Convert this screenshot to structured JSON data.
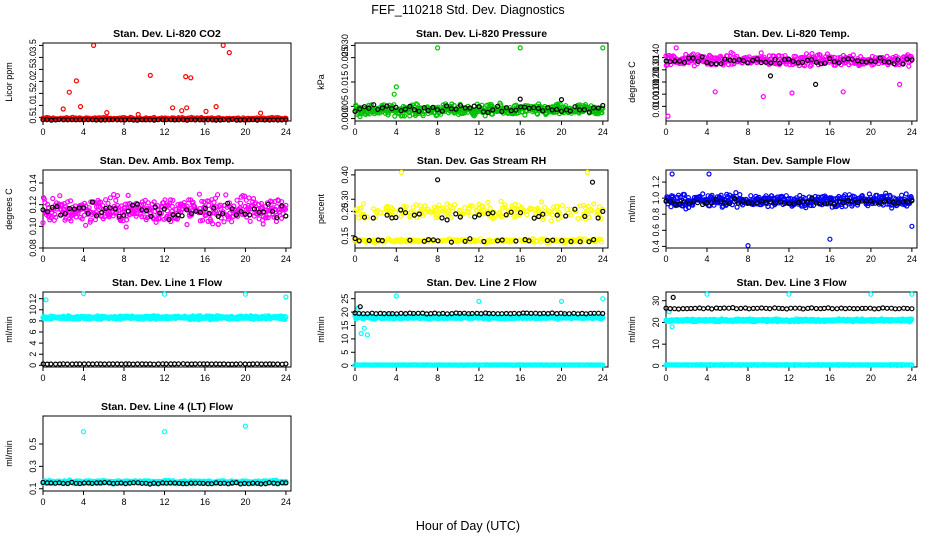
{
  "figure": {
    "title": "FEF_110218  Std. Dev. Diagnostics",
    "xlabel": "Hour of Day (UTC)"
  },
  "chart_data": [
    {
      "type": "scatter",
      "title": "Stan. Dev. Li-820 CO2",
      "ylabel": "Licor ppm",
      "xlim": [
        0,
        24.5
      ],
      "ylim": [
        0.35,
        3.6
      ],
      "xticks": [
        0,
        4,
        8,
        12,
        16,
        20,
        24
      ],
      "yticks": [
        0.5,
        1.0,
        1.5,
        2.0,
        2.5,
        3.0,
        3.5
      ],
      "ytick_labels": [
        "0.5",
        "1.0",
        "1.5",
        "2.0",
        "2.5",
        "3.0",
        "3.5"
      ],
      "series": [
        {
          "color": "#ff0000",
          "mode": "band",
          "center": 0.45,
          "spread": 0.07,
          "n": 240,
          "outliers": [
            [
              5.0,
              3.5
            ],
            [
              17.8,
              3.5
            ],
            [
              18.4,
              3.2
            ],
            [
              3.3,
              2.02
            ],
            [
              14.1,
              2.2
            ],
            [
              14.6,
              2.15
            ],
            [
              10.6,
              2.25
            ],
            [
              2.6,
              1.55
            ],
            [
              3.7,
              0.95
            ],
            [
              2.0,
              0.85
            ],
            [
              12.8,
              0.9
            ],
            [
              13.7,
              0.78
            ],
            [
              16.1,
              0.75
            ],
            [
              6.3,
              0.7
            ],
            [
              9.4,
              0.62
            ],
            [
              21.5,
              0.68
            ],
            [
              14.2,
              0.9
            ],
            [
              17.1,
              0.95
            ]
          ]
        },
        {
          "color": "#000000",
          "mode": "band",
          "center": 0.4,
          "spread": 0.02,
          "n": 60,
          "outliers": []
        }
      ]
    },
    {
      "type": "scatter",
      "title": "Stan. Dev. Li-820 Pressure",
      "ylabel": "kPa",
      "xlim": [
        0,
        24.5
      ],
      "ylim": [
        -0.001,
        0.031
      ],
      "xticks": [
        0,
        4,
        8,
        12,
        16,
        20,
        24
      ],
      "yticks": [
        0.0,
        0.005,
        0.015,
        0.025,
        0.03
      ],
      "ytick_labels": [
        "0.000",
        "0.005",
        "0.015",
        "0.025",
        "0.030"
      ],
      "series": [
        {
          "color": "#00c000",
          "mode": "band",
          "center": 0.0035,
          "spread": 0.0033,
          "n": 420,
          "outliers": [
            [
              8.0,
              0.029
            ],
            [
              16.0,
              0.029
            ],
            [
              24.0,
              0.029
            ],
            [
              4.0,
              0.013
            ],
            [
              3.8,
              0.01
            ]
          ]
        },
        {
          "color": "#000000",
          "mode": "band",
          "center": 0.004,
          "spread": 0.0025,
          "n": 55,
          "outliers": [
            [
              16.0,
              0.008
            ],
            [
              20.0,
              0.0078
            ]
          ]
        }
      ]
    },
    {
      "type": "scatter",
      "title": "Stan. Dev. Li-820 Temp.",
      "ylabel": "degrees C",
      "xlim": [
        0,
        24.5
      ],
      "ylim": [
        0.0088,
        0.0152
      ],
      "xticks": [
        0,
        4,
        8,
        12,
        16,
        20,
        24
      ],
      "yticks": [
        0.01,
        0.011,
        0.012,
        0.013,
        0.014
      ],
      "ytick_labels": [
        "0.010",
        "0.0110",
        "0.0120",
        "0.0130",
        "0.0140"
      ],
      "series": [
        {
          "color": "#ff00ff",
          "mode": "band",
          "center": 0.0138,
          "spread": 0.0007,
          "n": 360,
          "outliers": [
            [
              0.2,
              0.0092
            ],
            [
              1.0,
              0.0148
            ],
            [
              1.4,
              0.0138
            ],
            [
              4.8,
              0.0112
            ],
            [
              9.5,
              0.0108
            ],
            [
              12.3,
              0.0111
            ],
            [
              17.3,
              0.0112
            ],
            [
              22.8,
              0.0118
            ],
            [
              2.5,
              0.0142
            ]
          ]
        },
        {
          "color": "#000000",
          "mode": "band",
          "center": 0.0137,
          "spread": 0.0005,
          "n": 55,
          "outliers": [
            [
              14.6,
              0.0118
            ],
            [
              10.2,
              0.0125
            ]
          ]
        }
      ]
    },
    {
      "type": "scatter",
      "title": "Stan. Dev. Amb. Box Temp.",
      "ylabel": "degrees C",
      "xlim": [
        0,
        24.5
      ],
      "ylim": [
        0.08,
        0.152
      ],
      "xticks": [
        0,
        4,
        8,
        12,
        16,
        20,
        24
      ],
      "yticks": [
        0.08,
        0.1,
        0.12,
        0.14
      ],
      "ytick_labels": [
        "0.08",
        "0.10",
        "0.12",
        "0.14"
      ],
      "series": [
        {
          "color": "#ff00ff",
          "mode": "band",
          "center": 0.115,
          "spread": 0.018,
          "n": 420,
          "outliers": []
        },
        {
          "color": "#000000",
          "mode": "band",
          "center": 0.115,
          "spread": 0.01,
          "n": 55,
          "outliers": []
        }
      ]
    },
    {
      "type": "scatter",
      "title": "Stan. Dev. Gas Stream RH",
      "ylabel": "percent",
      "xlim": [
        0,
        24.5
      ],
      "ylim": [
        0.1,
        0.42
      ],
      "xticks": [
        0,
        4,
        8,
        12,
        16,
        20,
        24
      ],
      "yticks": [
        0.15,
        0.25,
        0.3,
        0.4
      ],
      "ytick_labels": [
        "0.15",
        "0.25",
        "0.30",
        "0.40"
      ],
      "series": [
        {
          "color": "#ffff00",
          "mode": "bimodal",
          "center": 0.13,
          "spread": 0.01,
          "center2": 0.25,
          "spread2": 0.05,
          "n": 420,
          "outliers": [
            [
              4.5,
              0.41
            ],
            [
              22.5,
              0.41
            ]
          ]
        },
        {
          "color": "#000000",
          "mode": "bimodal",
          "center": 0.13,
          "spread": 0.01,
          "center2": 0.24,
          "spread2": 0.04,
          "n": 55,
          "outliers": [
            [
              8.0,
              0.38
            ],
            [
              23.0,
              0.37
            ]
          ]
        }
      ]
    },
    {
      "type": "scatter",
      "title": "Stan. Dev. Sample Flow",
      "ylabel": "ml/min",
      "xlim": [
        0,
        24.5
      ],
      "ylim": [
        0.38,
        1.35
      ],
      "xticks": [
        0,
        4,
        8,
        12,
        16,
        20,
        24
      ],
      "yticks": [
        0.4,
        0.6,
        0.8,
        1.0,
        1.2
      ],
      "ytick_labels": [
        "0.4",
        "0.6",
        "0.8",
        "1.0",
        "1.2"
      ],
      "series": [
        {
          "color": "#0000ff",
          "mode": "band",
          "center": 0.97,
          "spread": 0.12,
          "n": 420,
          "outliers": [
            [
              8.0,
              0.41
            ],
            [
              16.0,
              0.49
            ],
            [
              24.0,
              0.65
            ],
            [
              0.6,
              1.3
            ],
            [
              4.2,
              1.3
            ]
          ]
        },
        {
          "color": "#000000",
          "mode": "band",
          "center": 0.95,
          "spread": 0.05,
          "n": 55,
          "outliers": []
        }
      ]
    },
    {
      "type": "scatter",
      "title": "Stan. Dev. Line 1 Flow",
      "ylabel": "ml/min",
      "xlim": [
        0,
        24.5
      ],
      "ylim": [
        -0.3,
        13.2
      ],
      "xticks": [
        0,
        4,
        8,
        12,
        16,
        20,
        24
      ],
      "yticks": [
        0,
        2,
        4,
        6,
        8,
        10,
        12
      ],
      "ytick_labels": [
        "0",
        "2",
        "4",
        "6",
        "8",
        "10",
        "12"
      ],
      "series": [
        {
          "color": "#00ffff",
          "mode": "band",
          "center": 8.6,
          "spread": 0.45,
          "n": 480,
          "outliers": [
            [
              0.3,
              11.8
            ],
            [
              4.0,
              12.9
            ],
            [
              12.0,
              12.8
            ],
            [
              20.0,
              12.8
            ],
            [
              24.0,
              12.3
            ]
          ]
        },
        {
          "color": "#000000",
          "mode": "band",
          "center": 0.25,
          "spread": 0.05,
          "n": 60,
          "outliers": []
        }
      ]
    },
    {
      "type": "scatter",
      "title": "Stan. Dev. Line 2 Flow",
      "ylabel": "ml/min",
      "xlim": [
        0,
        24.5
      ],
      "ylim": [
        -0.5,
        27.5
      ],
      "xticks": [
        0,
        4,
        8,
        12,
        16,
        20,
        24
      ],
      "yticks": [
        0,
        5,
        10,
        15,
        20,
        25
      ],
      "ytick_labels": [
        "0",
        "5",
        "10",
        "15",
        "20",
        "25"
      ],
      "series": [
        {
          "color": "#00ffff",
          "mode": "band",
          "center": 18.0,
          "spread": 0.8,
          "n": 480,
          "outliers": [
            [
              0.6,
              12.0
            ],
            [
              0.9,
              14.0
            ],
            [
              1.2,
              11.5
            ],
            [
              4.0,
              26.0
            ],
            [
              12.0,
              24.0
            ],
            [
              20.0,
              24.0
            ],
            [
              24.0,
              25.0
            ],
            [
              0.3,
              21.5
            ]
          ]
        },
        {
          "color": "#00ffff",
          "mode": "band",
          "center": 0.25,
          "spread": 0.08,
          "n": 200,
          "outliers": []
        },
        {
          "color": "#000000",
          "mode": "band",
          "center": 19.5,
          "spread": 0.3,
          "n": 60,
          "outliers": [
            [
              0.5,
              22.0
            ]
          ]
        }
      ]
    },
    {
      "type": "scatter",
      "title": "Stan. Dev. Line 3 Flow",
      "ylabel": "ml/min",
      "xlim": [
        0,
        24.5
      ],
      "ylim": [
        -0.5,
        34.0
      ],
      "xticks": [
        0,
        4,
        8,
        12,
        16,
        20,
        24
      ],
      "yticks": [
        0,
        10,
        20,
        30
      ],
      "ytick_labels": [
        "0",
        "10",
        "20",
        "30"
      ],
      "series": [
        {
          "color": "#00ffff",
          "mode": "band",
          "center": 21.0,
          "spread": 0.8,
          "n": 480,
          "outliers": [
            [
              0.3,
              25.0
            ],
            [
              0.6,
              18.0
            ],
            [
              4.0,
              33.0
            ],
            [
              12.0,
              33.0
            ],
            [
              20.0,
              33.0
            ],
            [
              24.0,
              33.0
            ]
          ]
        },
        {
          "color": "#00ffff",
          "mode": "band",
          "center": 0.5,
          "spread": 0.1,
          "n": 200,
          "outliers": []
        },
        {
          "color": "#000000",
          "mode": "band",
          "center": 26.5,
          "spread": 0.4,
          "n": 60,
          "outliers": [
            [
              0.7,
              31.5
            ]
          ]
        }
      ]
    },
    {
      "type": "scatter",
      "title": "Stan. Dev. Line 4 (LT) Flow",
      "ylabel": "ml/min",
      "xlim": [
        0,
        24.5
      ],
      "ylim": [
        0.08,
        0.75
      ],
      "xticks": [
        0,
        4,
        8,
        12,
        16,
        20,
        24
      ],
      "yticks": [
        0.1,
        0.3,
        0.5
      ],
      "ytick_labels": [
        "0.1",
        "0.3",
        "0.5"
      ],
      "series": [
        {
          "color": "#00ffff",
          "mode": "band",
          "center": 0.16,
          "spread": 0.02,
          "n": 480,
          "outliers": [
            [
              4.0,
              0.61
            ],
            [
              12.0,
              0.61
            ],
            [
              20.0,
              0.66
            ]
          ]
        },
        {
          "color": "#000000",
          "mode": "band",
          "center": 0.15,
          "spread": 0.01,
          "n": 60,
          "outliers": []
        }
      ]
    }
  ]
}
